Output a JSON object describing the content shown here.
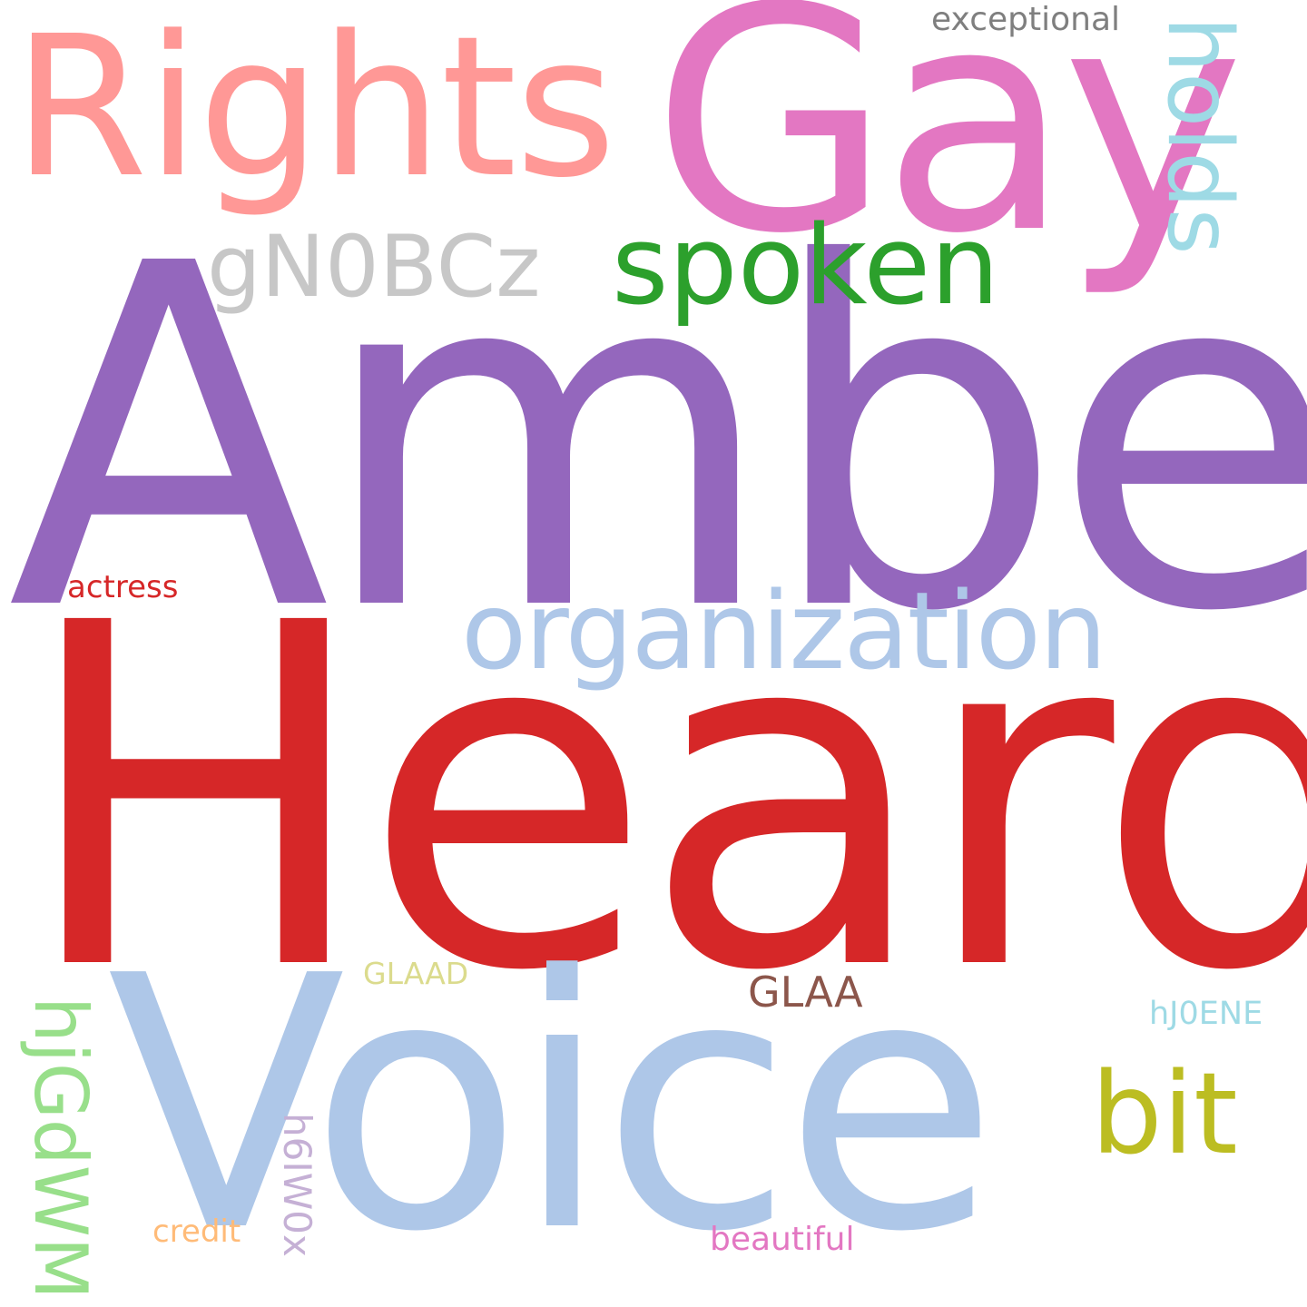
{
  "words": {
    "amber": {
      "text": "Amber",
      "color": "#9467bd"
    },
    "heard": {
      "text": "Heard",
      "color": "#d62728"
    },
    "voice": {
      "text": "Voice",
      "color": "#aec7e8"
    },
    "gay": {
      "text": "Gay",
      "color": "#e377c2"
    },
    "rights": {
      "text": "Rights",
      "color": "#ff9896"
    },
    "organization": {
      "text": "organization",
      "color": "#aec7e8"
    },
    "spoken": {
      "text": "spoken",
      "color": "#2ca02c"
    },
    "gn0bcz": {
      "text": "gN0BCz",
      "color": "#c7c7c7"
    },
    "holds": {
      "text": "holds",
      "color": "#9edae5"
    },
    "bit": {
      "text": "bit",
      "color": "#bcbd22"
    },
    "hjgdwm": {
      "text": "hjGdWM",
      "color": "#98df8a"
    },
    "glaa": {
      "text": "GLAA",
      "color": "#8c564b"
    },
    "exceptional": {
      "text": "exceptional",
      "color": "#7f7f7f"
    },
    "actress": {
      "text": "actress",
      "color": "#d62728"
    },
    "glaad": {
      "text": "GLAAD",
      "color": "#dbdb8d"
    },
    "hj0ene": {
      "text": "hJ0ENE",
      "color": "#9edae5"
    },
    "h6iw0x": {
      "text": "h6IW0x",
      "color": "#c5b0d5"
    },
    "credit": {
      "text": "credit",
      "color": "#ffbb78"
    },
    "beautiful": {
      "text": "beautiful",
      "color": "#e377c2"
    }
  }
}
